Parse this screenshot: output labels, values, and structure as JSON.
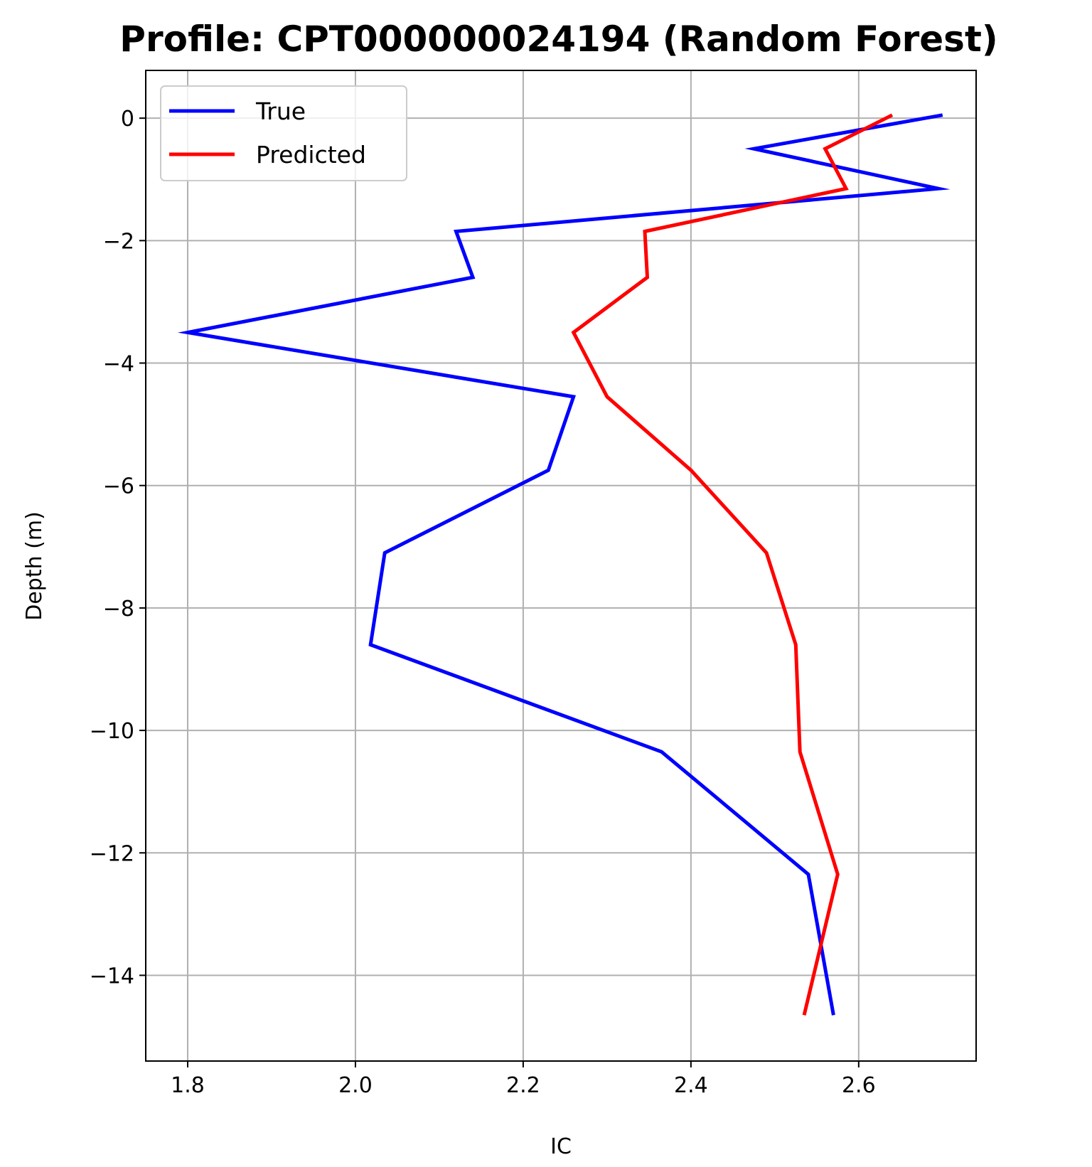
{
  "chart_data": {
    "type": "line",
    "title": "Profile: CPT000000024194 (Random Forest)",
    "xlabel": "IC",
    "ylabel": "Depth (m)",
    "xlim": [
      1.75,
      2.74
    ],
    "ylim": [
      -15.4,
      0.78
    ],
    "xticks": [
      1.8,
      2.0,
      2.2,
      2.4,
      2.6
    ],
    "xtick_labels": [
      "1.8",
      "2.0",
      "2.2",
      "2.4",
      "2.6"
    ],
    "yticks": [
      0,
      -2,
      -4,
      -6,
      -8,
      -10,
      -12,
      -14
    ],
    "ytick_labels": [
      "0",
      "−2",
      "−4",
      "−6",
      "−8",
      "−10",
      "−12",
      "−14"
    ],
    "grid": true,
    "legend_position": "upper-left",
    "series": [
      {
        "name": "True",
        "color": "#0000ff",
        "x": [
          2.7,
          2.475,
          2.695,
          2.12,
          2.14,
          1.8,
          2.26,
          2.23,
          2.035,
          2.018,
          2.365,
          2.54,
          2.57
        ],
        "y": [
          0.05,
          -0.5,
          -1.15,
          -1.85,
          -2.6,
          -3.5,
          -4.55,
          -5.75,
          -7.1,
          -8.6,
          -10.35,
          -12.35,
          -14.65
        ]
      },
      {
        "name": "Predicted",
        "color": "#ff0000",
        "x": [
          2.64,
          2.56,
          2.585,
          2.345,
          2.348,
          2.26,
          2.3,
          2.4,
          2.49,
          2.525,
          2.53,
          2.575,
          2.535
        ],
        "y": [
          0.05,
          -0.5,
          -1.15,
          -1.85,
          -2.6,
          -3.5,
          -4.55,
          -5.75,
          -7.1,
          -8.6,
          -10.35,
          -12.35,
          -14.65
        ]
      }
    ]
  }
}
